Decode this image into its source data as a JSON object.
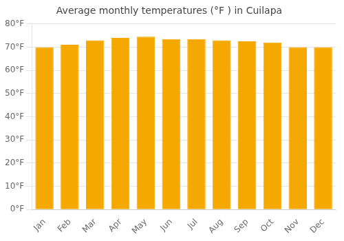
{
  "chart_data": {
    "type": "bar",
    "title": "Average monthly temperatures (°F ) in Cuilapa",
    "categories": [
      "Jan",
      "Feb",
      "Mar",
      "Apr",
      "May",
      "Jun",
      "Jul",
      "Aug",
      "Sep",
      "Oct",
      "Nov",
      "Dec"
    ],
    "values": [
      70.0,
      71.0,
      73.0,
      74.0,
      74.5,
      73.5,
      73.5,
      73.0,
      72.5,
      72.0,
      70.0,
      70.0
    ],
    "color": "#F5A800",
    "ylim": [
      0,
      80
    ],
    "yticks": [
      {
        "value": 0,
        "label": "0°F"
      },
      {
        "value": 10,
        "label": "10°F"
      },
      {
        "value": 20,
        "label": "20°F"
      },
      {
        "value": 30,
        "label": "30°F"
      },
      {
        "value": 40,
        "label": "40°F"
      },
      {
        "value": 50,
        "label": "50°F"
      },
      {
        "value": 60,
        "label": "60°F"
      },
      {
        "value": 70,
        "label": "70°F"
      },
      {
        "value": 80,
        "label": "80°F"
      }
    ],
    "grid": true
  }
}
